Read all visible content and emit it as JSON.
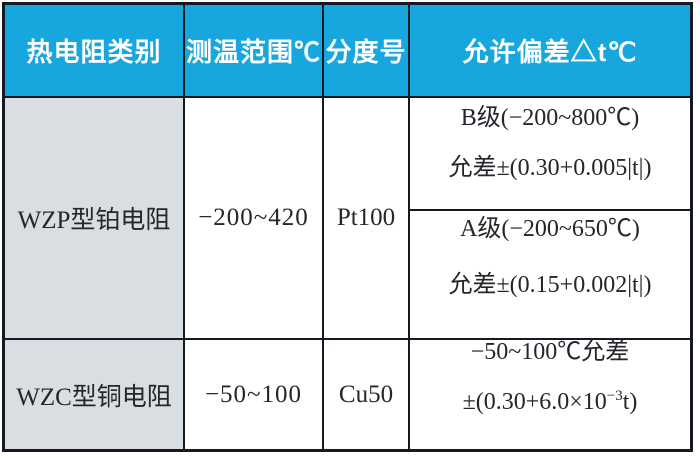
{
  "table": {
    "header": {
      "category_label": "热电阻类别",
      "range_label": "测温范围℃",
      "graduation_label": "分度号",
      "deviation_label": "允许偏差△t℃"
    },
    "rows": {
      "wzp": {
        "category": "WZP型铂电阻",
        "range": "−200~420",
        "graduation": "Pt100",
        "deviation_b": {
          "line1": "B级(−200~800℃)",
          "line2": "允差±(0.30+0.005|t|)"
        },
        "deviation_a": {
          "line1": "A级(−200~650℃)",
          "line2": "允差±(0.15+0.002|t|)"
        }
      },
      "wzc": {
        "category": "WZC型铜电阻",
        "range": "−50~100",
        "graduation": "Cu50",
        "deviation": {
          "line1": "−50~100℃允差",
          "line2_pre": "±(0.30+6.0×10",
          "line2_sup": "−3",
          "line2_post": "t)"
        }
      }
    },
    "colors": {
      "header_bg": "#17a6dd",
      "category_bg": "#d9dee3",
      "border": "#141a21",
      "header_text": "#ffffff",
      "body_text": "#25262b"
    }
  }
}
